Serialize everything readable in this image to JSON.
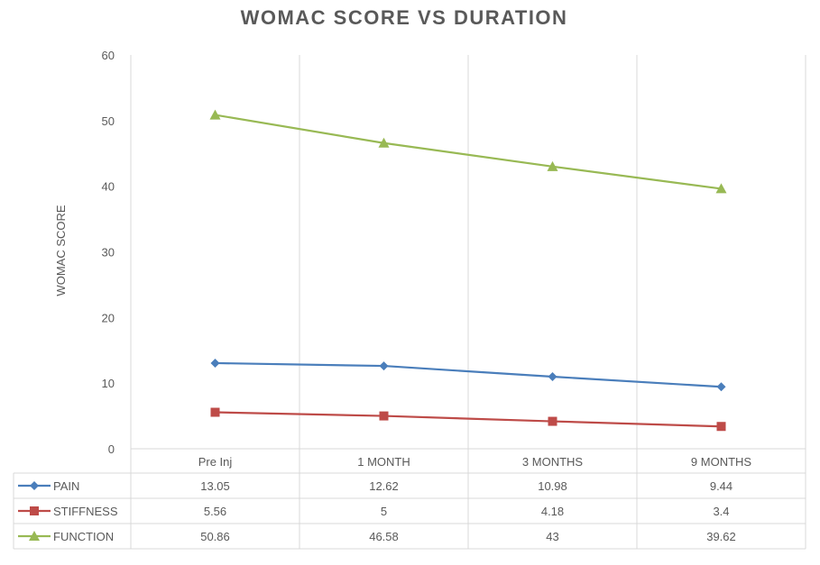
{
  "chart_data": {
    "type": "line",
    "title": "WOMAC SCORE VS DURATION",
    "ylabel": "WOMAC SCORE",
    "xlabel": "",
    "ylim": [
      0,
      60
    ],
    "yticks": [
      0,
      10,
      20,
      30,
      40,
      50,
      60
    ],
    "categories": [
      "Pre Inj",
      "1 MONTH",
      "3 MONTHS",
      "9 MONTHS"
    ],
    "grid": "vertical",
    "legend": "data-table",
    "series": [
      {
        "name": "PAIN",
        "values": [
          13.05,
          12.62,
          10.98,
          9.44
        ],
        "color": "#4a7ebb",
        "marker": "diamond"
      },
      {
        "name": "STIFFNESS",
        "values": [
          5.56,
          5,
          4.18,
          3.4
        ],
        "color": "#be4b48",
        "marker": "square"
      },
      {
        "name": "FUNCTION",
        "values": [
          50.86,
          46.58,
          43,
          39.62
        ],
        "color": "#98b954",
        "marker": "triangle"
      }
    ],
    "table_values": [
      [
        "13.05",
        "12.62",
        "10.98",
        "9.44"
      ],
      [
        "5.56",
        "5",
        "4.18",
        "3.4"
      ],
      [
        "50.86",
        "46.58",
        "43",
        "39.62"
      ]
    ]
  }
}
